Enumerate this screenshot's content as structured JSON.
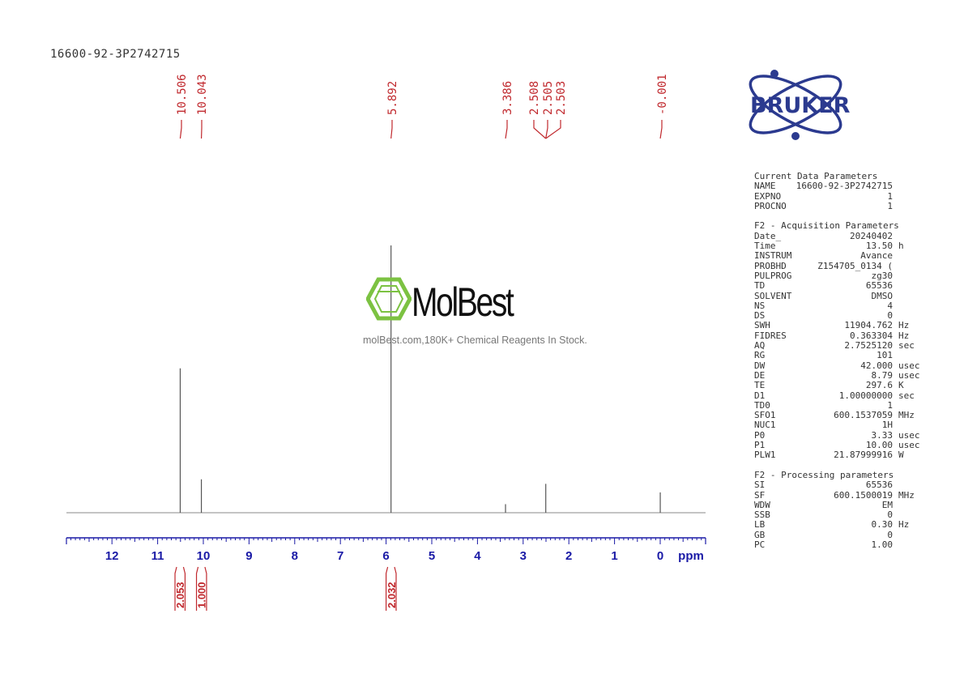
{
  "sample_title": "16600-92-3P2742715",
  "watermark": {
    "brand": "MolBest",
    "tagline": "molBest.com,180K+ Chemical Reagents In Stock."
  },
  "logo": {
    "text": "BRUKER",
    "color": "#2b3a8f"
  },
  "colors": {
    "axis": "#1a1aa6",
    "peak_label": "#c0282d",
    "integral": "#c0282d",
    "spectrum": "#555555"
  },
  "chart_data": {
    "type": "line",
    "title": "16600-92-3P2742715",
    "xlabel": "ppm",
    "xlim": [
      13.0,
      -1.0
    ],
    "x_ticks": [
      "12",
      "11",
      "10",
      "9",
      "8",
      "7",
      "6",
      "5",
      "4",
      "3",
      "2",
      "1",
      "0"
    ],
    "x_unit_label": "ppm",
    "peak_labels": [
      "10.506",
      "10.043",
      "5.892",
      "3.386",
      "2.508",
      "2.505",
      "2.503",
      "-0.001"
    ],
    "peaks": [
      {
        "ppm": 10.506,
        "height": 0.54
      },
      {
        "ppm": 10.043,
        "height": 0.125
      },
      {
        "ppm": 5.892,
        "height": 1.0
      },
      {
        "ppm": 3.386,
        "height": 0.032
      },
      {
        "ppm": 2.505,
        "height": 0.108
      },
      {
        "ppm": -0.001,
        "height": 0.076
      }
    ],
    "integrals": [
      {
        "from": 10.62,
        "to": 10.4,
        "value": "2.053"
      },
      {
        "from": 10.15,
        "to": 9.93,
        "value": "1.000"
      },
      {
        "from": 6.0,
        "to": 5.78,
        "value": "2.032"
      }
    ]
  },
  "parameters": {
    "current": {
      "heading": "Current Data Parameters",
      "rows": [
        {
          "key": "NAME",
          "value": "16600-92-3P2742715",
          "unit": ""
        },
        {
          "key": "EXPNO",
          "value": "1",
          "unit": ""
        },
        {
          "key": "PROCNO",
          "value": "1",
          "unit": ""
        }
      ]
    },
    "acquisition": {
      "heading": "F2 - Acquisition Parameters",
      "rows": [
        {
          "key": "Date_",
          "value": "20240402",
          "unit": ""
        },
        {
          "key": "Time",
          "value": "13.50",
          "unit": "h"
        },
        {
          "key": "INSTRUM",
          "value": "Avance",
          "unit": ""
        },
        {
          "key": "PROBHD",
          "value": "Z154705_0134 (",
          "unit": ""
        },
        {
          "key": "PULPROG",
          "value": "zg30",
          "unit": ""
        },
        {
          "key": "TD",
          "value": "65536",
          "unit": ""
        },
        {
          "key": "SOLVENT",
          "value": "DMSO",
          "unit": ""
        },
        {
          "key": "NS",
          "value": "4",
          "unit": ""
        },
        {
          "key": "DS",
          "value": "0",
          "unit": ""
        },
        {
          "key": "SWH",
          "value": "11904.762",
          "unit": "Hz"
        },
        {
          "key": "FIDRES",
          "value": "0.363304",
          "unit": "Hz"
        },
        {
          "key": "AQ",
          "value": "2.7525120",
          "unit": "sec"
        },
        {
          "key": "RG",
          "value": "101",
          "unit": ""
        },
        {
          "key": "DW",
          "value": "42.000",
          "unit": "usec"
        },
        {
          "key": "DE",
          "value": "8.79",
          "unit": "usec"
        },
        {
          "key": "TE",
          "value": "297.6",
          "unit": "K"
        },
        {
          "key": "D1",
          "value": "1.00000000",
          "unit": "sec"
        },
        {
          "key": "TD0",
          "value": "1",
          "unit": ""
        },
        {
          "key": "SFO1",
          "value": "600.1537059",
          "unit": "MHz"
        },
        {
          "key": "NUC1",
          "value": "1H",
          "unit": ""
        },
        {
          "key": "P0",
          "value": "3.33",
          "unit": "usec"
        },
        {
          "key": "P1",
          "value": "10.00",
          "unit": "usec"
        },
        {
          "key": "PLW1",
          "value": "21.87999916",
          "unit": "W"
        }
      ]
    },
    "processing": {
      "heading": "F2 - Processing parameters",
      "rows": [
        {
          "key": "SI",
          "value": "65536",
          "unit": ""
        },
        {
          "key": "SF",
          "value": "600.1500019",
          "unit": "MHz"
        },
        {
          "key": "WDW",
          "value": "EM",
          "unit": ""
        },
        {
          "key": "SSB",
          "value": "0",
          "unit": ""
        },
        {
          "key": "LB",
          "value": "0.30",
          "unit": "Hz"
        },
        {
          "key": "GB",
          "value": "0",
          "unit": ""
        },
        {
          "key": "PC",
          "value": "1.00",
          "unit": ""
        }
      ]
    }
  }
}
